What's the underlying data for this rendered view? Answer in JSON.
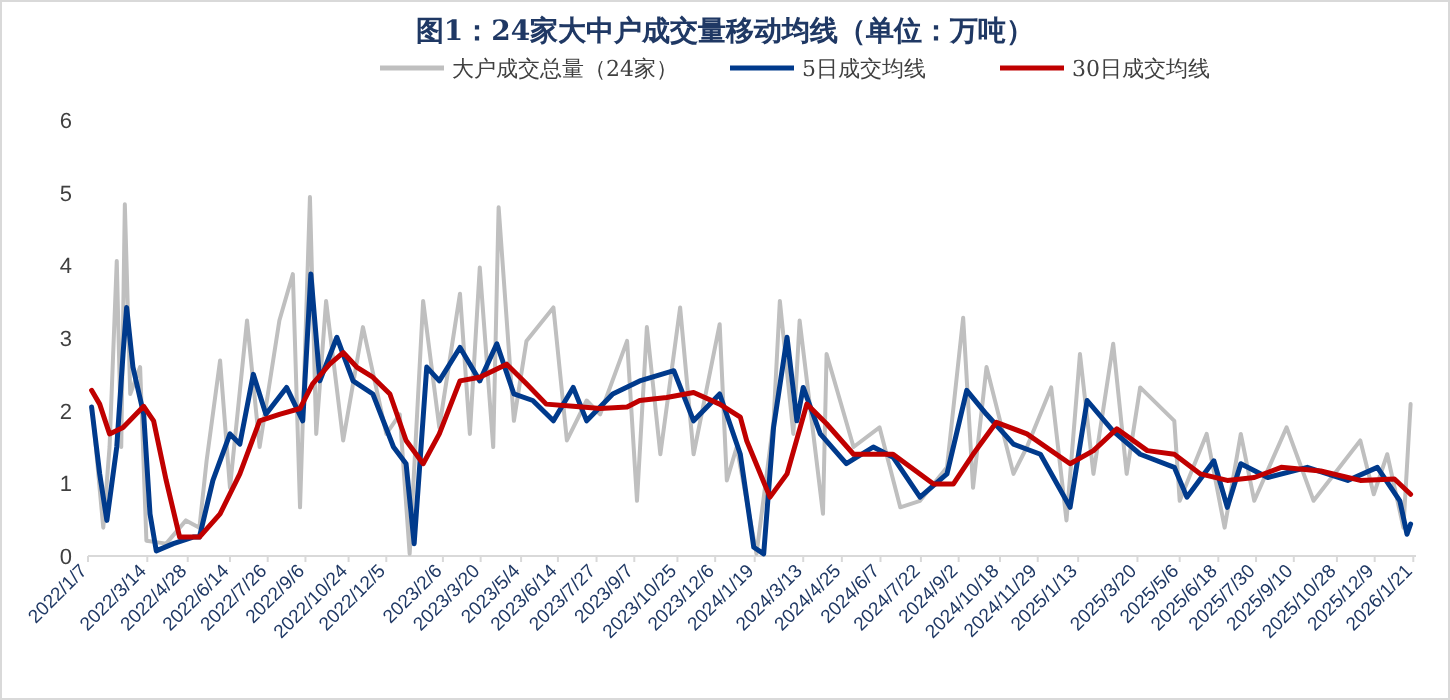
{
  "chart_data": {
    "type": "line",
    "title": "图1：24家大中户成交量移动均线（单位：万吨）",
    "legend": "top",
    "ylim": [
      0,
      6
    ],
    "yticks": [
      0,
      1,
      2,
      3,
      4,
      5,
      6
    ],
    "xlim": [
      "2022-01-07",
      "2026-01-24"
    ],
    "xticks": [
      {
        "value": "2022-01-07",
        "label": "2022/1/7"
      },
      {
        "value": "2022-03-14",
        "label": "2022/3/14"
      },
      {
        "value": "2022-04-28",
        "label": "2022/4/28"
      },
      {
        "value": "2022-06-14",
        "label": "2022/6/14"
      },
      {
        "value": "2022-07-26",
        "label": "2022/7/26"
      },
      {
        "value": "2022-09-06",
        "label": "2022/9/6"
      },
      {
        "value": "2022-10-24",
        "label": "2022/10/24"
      },
      {
        "value": "2022-12-05",
        "label": "2022/12/5"
      },
      {
        "value": "2023-02-06",
        "label": "2023/2/6"
      },
      {
        "value": "2023-03-20",
        "label": "2023/3/20"
      },
      {
        "value": "2023-05-04",
        "label": "2023/5/4"
      },
      {
        "value": "2023-06-14",
        "label": "2023/6/14"
      },
      {
        "value": "2023-07-27",
        "label": "2023/7/27"
      },
      {
        "value": "2023-09-07",
        "label": "2023/9/7"
      },
      {
        "value": "2023-10-25",
        "label": "2023/10/25"
      },
      {
        "value": "2023-12-06",
        "label": "2023/12/6"
      },
      {
        "value": "2024-01-19",
        "label": "2024/1/19"
      },
      {
        "value": "2024-03-13",
        "label": "2024/3/13"
      },
      {
        "value": "2024-04-25",
        "label": "2024/4/25"
      },
      {
        "value": "2024-06-07",
        "label": "2024/6/7"
      },
      {
        "value": "2024-07-22",
        "label": "2024/7/22"
      },
      {
        "value": "2024-09-02",
        "label": "2024/9/2"
      },
      {
        "value": "2024-10-18",
        "label": "2024/10/18"
      },
      {
        "value": "2024-11-29",
        "label": "2024/11/29"
      },
      {
        "value": "2025-01-13",
        "label": "2025/1/13"
      },
      {
        "value": "2025-03-20",
        "label": "2025/3/20"
      },
      {
        "value": "2025-05-06",
        "label": "2025/5/6"
      },
      {
        "value": "2025-06-18",
        "label": "2025/6/18"
      },
      {
        "value": "2025-07-30",
        "label": "2025/7/30"
      },
      {
        "value": "2025-09-10",
        "label": "2025/9/10"
      },
      {
        "value": "2025-10-28",
        "label": "2025/10/28"
      },
      {
        "value": "2025-12-09",
        "label": "2025/12/9"
      },
      {
        "value": "2026-01-21",
        "label": "2026/1/21"
      }
    ],
    "series": [
      {
        "name": "大户成交总量（24家）",
        "color": "#bfbfbf",
        "x": [
          "2022-01-13",
          "2022-01-24",
          "2022-01-31",
          "2022-02-08",
          "2022-02-13",
          "2022-02-17",
          "2022-02-23",
          "2022-03-06",
          "2022-03-13",
          "2022-04-04",
          "2022-04-26",
          "2022-05-11",
          "2022-05-19",
          "2022-06-03",
          "2022-06-14",
          "2022-07-03",
          "2022-07-17",
          "2022-08-08",
          "2022-08-23",
          "2022-08-31",
          "2022-09-11",
          "2022-09-18",
          "2022-09-29",
          "2022-10-18",
          "2022-11-09",
          "2022-12-05",
          "2022-12-20",
          "2022-12-31",
          "2023-01-15",
          "2023-02-02",
          "2023-02-25",
          "2023-03-08",
          "2023-03-19",
          "2023-04-03",
          "2023-04-09",
          "2023-04-26",
          "2023-05-10",
          "2023-06-09",
          "2023-06-24",
          "2023-07-16",
          "2023-07-31",
          "2023-08-30",
          "2023-09-10",
          "2023-09-21",
          "2023-10-06",
          "2023-10-28",
          "2023-11-12",
          "2023-12-11",
          "2023-12-19",
          "2023-12-30",
          "2024-01-21",
          "2024-02-09",
          "2024-02-16",
          "2024-03-02",
          "2024-03-09",
          "2024-04-04",
          "2024-04-08",
          "2024-05-08",
          "2024-06-06",
          "2024-06-29",
          "2024-07-21",
          "2024-08-20",
          "2024-09-07",
          "2024-09-18",
          "2024-10-03",
          "2024-11-02",
          "2024-11-17",
          "2024-12-14",
          "2024-12-31",
          "2025-01-15",
          "2025-01-30",
          "2025-02-21",
          "2025-03-08",
          "2025-03-23",
          "2025-04-30",
          "2025-05-06",
          "2025-06-05",
          "2025-06-25",
          "2025-07-13",
          "2025-07-28",
          "2025-09-02",
          "2025-10-02",
          "2025-11-23",
          "2025-12-08",
          "2025-12-23",
          "2026-01-10",
          "2026-01-18"
        ],
        "values": [
          1.86,
          0.39,
          1.5,
          4.06,
          1.5,
          4.84,
          2.23,
          2.6,
          0.21,
          0.17,
          0.49,
          0.39,
          1.31,
          2.69,
          0.94,
          3.24,
          1.5,
          3.24,
          3.88,
          0.67,
          4.94,
          1.68,
          3.51,
          1.59,
          3.15,
          1.68,
          1.95,
          0.03,
          3.51,
          1.77,
          3.61,
          1.68,
          3.97,
          1.5,
          4.8,
          1.86,
          2.96,
          3.42,
          1.59,
          2.14,
          1.95,
          2.96,
          0.76,
          3.15,
          1.4,
          3.42,
          1.4,
          3.19,
          1.04,
          1.5,
          0.03,
          1.86,
          3.51,
          1.68,
          3.24,
          0.58,
          2.78,
          1.5,
          1.77,
          0.67,
          0.76,
          1.22,
          3.28,
          0.94,
          2.6,
          1.13,
          1.5,
          2.32,
          0.49,
          2.78,
          1.13,
          2.92,
          1.13,
          2.32,
          1.86,
          0.76,
          1.68,
          0.39,
          1.68,
          0.76,
          1.77,
          0.76,
          1.59,
          0.85,
          1.4,
          0.39,
          2.09
        ]
      },
      {
        "name": "5日成交均线",
        "color": "#003a8c",
        "x": [
          "2022-01-11",
          "2022-01-20",
          "2022-01-28",
          "2022-02-08",
          "2022-02-15",
          "2022-02-19",
          "2022-02-26",
          "2022-03-10",
          "2022-03-17",
          "2022-03-24",
          "2022-04-12",
          "2022-05-04",
          "2022-05-11",
          "2022-05-26",
          "2022-06-14",
          "2022-06-25",
          "2022-07-10",
          "2022-07-24",
          "2022-08-16",
          "2022-09-03",
          "2022-09-12",
          "2022-09-22",
          "2022-10-11",
          "2022-10-29",
          "2022-11-20",
          "2022-12-13",
          "2022-12-27",
          "2023-01-05",
          "2023-01-19",
          "2023-02-02",
          "2023-02-25",
          "2023-03-19",
          "2023-04-07",
          "2023-04-26",
          "2023-05-17",
          "2023-06-09",
          "2023-07-01",
          "2023-07-16",
          "2023-08-14",
          "2023-09-13",
          "2023-10-21",
          "2023-11-12",
          "2023-12-11",
          "2024-01-03",
          "2024-01-18",
          "2024-01-29",
          "2024-02-09",
          "2024-02-24",
          "2024-03-06",
          "2024-03-13",
          "2024-04-01",
          "2024-04-30",
          "2024-05-30",
          "2024-06-21",
          "2024-07-21",
          "2024-08-20",
          "2024-09-11",
          "2024-10-03",
          "2024-11-02",
          "2024-12-02",
          "2025-01-04",
          "2025-01-23",
          "2025-02-21",
          "2025-03-23",
          "2025-04-30",
          "2025-05-14",
          "2025-06-13",
          "2025-06-28",
          "2025-07-13",
          "2025-08-12",
          "2025-09-25",
          "2025-11-09",
          "2025-12-12",
          "2026-01-06",
          "2026-01-14",
          "2026-01-18"
        ],
        "values": [
          2.05,
          1.13,
          0.49,
          1.5,
          2.78,
          3.42,
          2.6,
          1.95,
          0.58,
          0.07,
          0.17,
          0.26,
          0.26,
          1.04,
          1.68,
          1.54,
          2.5,
          1.95,
          2.32,
          1.86,
          3.88,
          2.41,
          3.01,
          2.41,
          2.23,
          1.5,
          1.27,
          0.17,
          2.6,
          2.41,
          2.87,
          2.41,
          2.92,
          2.23,
          2.14,
          1.86,
          2.32,
          1.86,
          2.23,
          2.41,
          2.55,
          1.86,
          2.23,
          1.4,
          0.12,
          0.03,
          1.77,
          3.01,
          1.86,
          2.32,
          1.68,
          1.27,
          1.5,
          1.36,
          0.81,
          1.13,
          2.28,
          1.95,
          1.54,
          1.4,
          0.67,
          2.14,
          1.72,
          1.4,
          1.22,
          0.81,
          1.31,
          0.67,
          1.27,
          1.08,
          1.22,
          1.04,
          1.22,
          0.76,
          0.3,
          0.44
        ]
      },
      {
        "name": "30日成交均线",
        "color": "#c00000",
        "x": [
          "2022-01-11",
          "2022-01-20",
          "2022-01-31",
          "2022-02-15",
          "2022-03-10",
          "2022-03-21",
          "2022-04-04",
          "2022-04-19",
          "2022-05-11",
          "2022-06-03",
          "2022-06-25",
          "2022-07-17",
          "2022-08-08",
          "2022-08-31",
          "2022-09-14",
          "2022-10-03",
          "2022-10-18",
          "2022-11-02",
          "2022-11-20",
          "2022-12-09",
          "2022-12-27",
          "2023-01-15",
          "2023-02-02",
          "2023-02-25",
          "2023-03-19",
          "2023-04-18",
          "2023-05-10",
          "2023-06-01",
          "2023-07-01",
          "2023-07-31",
          "2023-08-30",
          "2023-09-13",
          "2023-10-13",
          "2023-11-12",
          "2023-12-11",
          "2024-01-03",
          "2024-01-10",
          "2024-02-05",
          "2024-02-24",
          "2024-03-17",
          "2024-04-08",
          "2024-05-08",
          "2024-06-21",
          "2024-08-05",
          "2024-08-27",
          "2024-09-18",
          "2024-10-14",
          "2024-11-17",
          "2025-01-04",
          "2025-01-30",
          "2025-02-25",
          "2025-03-31",
          "2025-04-30",
          "2025-05-29",
          "2025-06-28",
          "2025-07-28",
          "2025-08-27",
          "2025-10-10",
          "2025-11-23",
          "2025-12-31",
          "2026-01-18"
        ],
        "values": [
          2.28,
          2.09,
          1.68,
          1.77,
          2.06,
          1.86,
          1.04,
          0.26,
          0.26,
          0.58,
          1.13,
          1.86,
          1.95,
          2.03,
          2.37,
          2.64,
          2.8,
          2.6,
          2.46,
          2.23,
          1.59,
          1.27,
          1.68,
          2.41,
          2.46,
          2.64,
          2.37,
          2.09,
          2.06,
          2.03,
          2.05,
          2.14,
          2.18,
          2.25,
          2.09,
          1.91,
          1.59,
          0.81,
          1.13,
          2.09,
          1.82,
          1.4,
          1.4,
          0.99,
          0.99,
          1.4,
          1.84,
          1.68,
          1.27,
          1.45,
          1.75,
          1.45,
          1.4,
          1.13,
          1.04,
          1.08,
          1.22,
          1.17,
          1.04,
          1.06,
          0.85
        ]
      }
    ]
  }
}
